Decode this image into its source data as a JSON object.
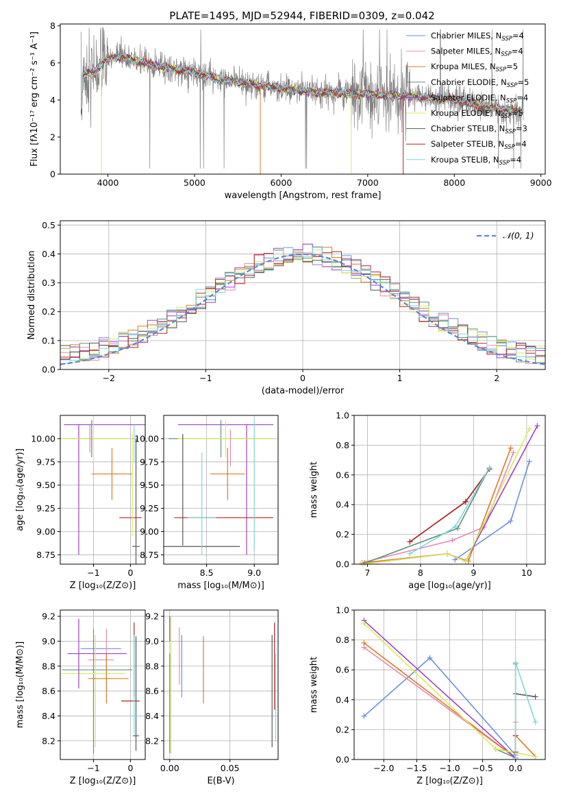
{
  "page": {
    "title": "PLATE=1495, MJD=52944, FIBERID=0309, z=0.042"
  },
  "colors": {
    "Chabrier MILES": "#6a8fdc",
    "Salpeter MILES": "#e58ab3",
    "Kroupa MILES": "#d97a26",
    "Chabrier ELODIE": "#5f8f78",
    "Salpeter ELODIE": "#a040c0",
    "Kroupa ELODIE": "#d9ea5a",
    "Chabrier STELIB": "#555555",
    "Salpeter STELIB": "#b22222",
    "Kroupa STELIB": "#7fd6dc",
    "data": "#808080",
    "normal": "#5b86d6"
  },
  "chart_data": [
    {
      "id": "spectrum",
      "type": "line",
      "title": "PLATE=1495, MJD=52944, FIBERID=0309, z=0.042",
      "xlabel": "wavelength [Angstrom, rest frame]",
      "ylabel": "Flux [fλ10⁻¹⁷ erg cm⁻² s⁻¹ A⁻¹]",
      "xlim": [
        3450,
        9050
      ],
      "ylim": [
        0,
        8.1
      ],
      "xticks": [
        "4000",
        "5000",
        "6000",
        "7000",
        "8000",
        "9000"
      ],
      "yticks": [
        "0",
        "2",
        "4",
        "6",
        "8"
      ],
      "legend": [
        {
          "name": "Chabrier MILES",
          "sub": "SSP",
          "n": "4"
        },
        {
          "name": "Salpeter MILES",
          "sub": "SSP",
          "n": "4"
        },
        {
          "name": "Kroupa MILES",
          "sub": "SSP",
          "n": "5"
        },
        {
          "name": "Chabrier ELODIE",
          "sub": "SSP",
          "n": "5"
        },
        {
          "name": "Salpeter ELODIE",
          "sub": "SSP",
          "n": "4"
        },
        {
          "name": "Kroupa ELODIE",
          "sub": "SSP",
          "n": "5"
        },
        {
          "name": "Chabrier STELIB",
          "sub": "SSP",
          "n": "3"
        },
        {
          "name": "Salpeter STELIB",
          "sub": "SSP",
          "n": "4"
        },
        {
          "name": "Kroupa STELIB",
          "sub": "SSP",
          "n": "4"
        }
      ],
      "legend_position": "top-right",
      "model_trend": [
        [
          3700,
          5.3
        ],
        [
          3850,
          5.5
        ],
        [
          3950,
          6.1
        ],
        [
          4050,
          6.3
        ],
        [
          4200,
          6.3
        ],
        [
          4400,
          6.0
        ],
        [
          4600,
          5.8
        ],
        [
          5000,
          5.5
        ],
        [
          5300,
          5.1
        ],
        [
          5600,
          4.9
        ],
        [
          6000,
          4.6
        ],
        [
          6500,
          4.4
        ],
        [
          7000,
          4.3
        ],
        [
          7500,
          4.2
        ],
        [
          8000,
          4.0
        ],
        [
          8500,
          3.5
        ],
        [
          8800,
          3.4
        ]
      ],
      "grid": false
    },
    {
      "id": "residuals",
      "type": "histogram",
      "xlabel": "(data-model)/error",
      "ylabel": "Normed distribution",
      "xlim": [
        -2.5,
        2.5
      ],
      "ylim": [
        0,
        0.515
      ],
      "xticks": [
        "−2",
        "−1",
        "0",
        "1",
        "2"
      ],
      "yticks": [
        "0.0",
        "0.1",
        "0.2",
        "0.3",
        "0.4",
        "0.5"
      ],
      "legend": "𝒩(0, 1)",
      "legend_position": "top-right",
      "grid": true
    },
    {
      "id": "age_vs_Z",
      "type": "errorbar",
      "xlabel": "Z [log₁₀(Z/Z⊙)]",
      "ylabel": "age  [log₁₀(age/yr)]",
      "xlim": [
        -1.9,
        0.4
      ],
      "ylim": [
        8.65,
        10.25
      ],
      "xticks": [
        "−1",
        "0"
      ],
      "yticks": [
        "8.75",
        "9.00",
        "9.25",
        "9.50",
        "9.75",
        "10.00"
      ],
      "grid": true,
      "series": [
        {
          "name": "Salpeter ELODIE",
          "x": -0.4,
          "xerr": 1.4,
          "y": 10.15,
          "yerr": 0.0
        },
        {
          "name": "Salpeter ELODIE",
          "x": -1.4,
          "xerr": 0.0,
          "y": 9.45,
          "yerr": 0.7
        },
        {
          "name": "Chabrier ELODIE",
          "x": -1.05,
          "xerr": 0.95,
          "y": 10.0,
          "yerr": 0.2
        },
        {
          "name": "Kroupa ELODIE",
          "x": -1.0,
          "xerr": 0.9,
          "y": 10.0,
          "yerr": 0.25
        },
        {
          "name": "Salpeter MILES",
          "x": -1.1,
          "xerr": 0.0,
          "y": 10.0,
          "yerr": 0.15
        },
        {
          "name": "Chabrier MILES",
          "x": -1.05,
          "xerr": 0.0,
          "y": 10.05,
          "yerr": 0.12
        },
        {
          "name": "Kroupa MILES",
          "x": -0.5,
          "xerr": 0.55,
          "y": 9.62,
          "yerr": 0.28
        },
        {
          "name": "Salpeter STELIB",
          "x": 0.0,
          "xerr": 0.3,
          "y": 9.15,
          "yerr": 0.0
        },
        {
          "name": "Chabrier STELIB",
          "x": 0.15,
          "xerr": 0.1,
          "y": 8.84,
          "yerr": 0.0
        },
        {
          "name": "Chabrier STELIB",
          "x": 0.15,
          "xerr": 0.0,
          "y": 9.3,
          "yerr": 0.7
        },
        {
          "name": "Kroupa STELIB",
          "x": 0.1,
          "xerr": 0.0,
          "y": 9.95,
          "yerr": 0.2
        },
        {
          "name": "Kroupa ELODIE",
          "x": 0.05,
          "xerr": 0.0,
          "y": 9.5,
          "yerr": 0.55
        }
      ]
    },
    {
      "id": "age_vs_mass",
      "type": "errorbar",
      "xlabel": "mass [log₁₀(M/M⊙)]",
      "ylabel": "",
      "xlim": [
        8.05,
        9.25
      ],
      "ylim": [
        8.65,
        10.25
      ],
      "xticks": [
        "8.5",
        "9.0"
      ],
      "yticks": [
        "8.75",
        "9.00",
        "9.25",
        "9.50",
        "9.75",
        "10.00"
      ],
      "grid": true,
      "series": [
        {
          "name": "Salpeter ELODIE",
          "x": 8.7,
          "xerr": 0.5,
          "y": 10.15,
          "yerr": 0.0
        },
        {
          "name": "Salpeter ELODIE",
          "x": 8.92,
          "xerr": 0.0,
          "y": 9.45,
          "yerr": 0.7
        },
        {
          "name": "Chabrier ELODIE",
          "x": 8.65,
          "xerr": 0.55,
          "y": 10.0,
          "yerr": 0.2
        },
        {
          "name": "Kroupa ELODIE",
          "x": 8.7,
          "xerr": 0.5,
          "y": 10.0,
          "yerr": 0.2
        },
        {
          "name": "Kroupa MILES",
          "x": 8.72,
          "xerr": 0.18,
          "y": 9.62,
          "yerr": 0.28
        },
        {
          "name": "Salpeter STELIB",
          "x": 8.68,
          "xerr": 0.52,
          "y": 9.15,
          "yerr": 0.0
        },
        {
          "name": "Chabrier STELIB",
          "x": 8.45,
          "xerr": 0.4,
          "y": 8.84,
          "yerr": 0.0
        },
        {
          "name": "Chabrier STELIB",
          "x": 8.25,
          "xerr": 0.0,
          "y": 9.45,
          "yerr": 0.6
        },
        {
          "name": "Kroupa STELIB",
          "x": 8.45,
          "xerr": 0.15,
          "y": 9.15,
          "yerr": 0.0
        },
        {
          "name": "Kroupa STELIB",
          "x": 8.45,
          "xerr": 0.0,
          "y": 9.3,
          "yerr": 0.55
        },
        {
          "name": "Salpeter MILES",
          "x": 8.75,
          "xerr": 0.0,
          "y": 9.9,
          "yerr": 0.2
        },
        {
          "name": "Kroupa STELIB",
          "x": 9.0,
          "xerr": 0.0,
          "y": 9.5,
          "yerr": 0.7
        }
      ]
    },
    {
      "id": "mass_weight_vs_age",
      "type": "line",
      "xlabel": "age  [log₁₀(age/yr)]",
      "ylabel": "mass weight",
      "xlim": [
        6.75,
        10.35
      ],
      "ylim": [
        0,
        1
      ],
      "xticks": [
        "7",
        "8",
        "9",
        "10"
      ],
      "yticks": [
        "0.0",
        "0.2",
        "0.4",
        "0.6",
        "0.8",
        "1.0"
      ],
      "grid": true,
      "series": [
        {
          "name": "Chabrier MILES",
          "x": [
            8.65,
            9.7,
            10.05
          ],
          "y": [
            0.03,
            0.29,
            0.69
          ]
        },
        {
          "name": "Salpeter MILES",
          "x": [
            6.9,
            8.6,
            9.2,
            9.75
          ],
          "y": [
            0.01,
            0.16,
            0.25,
            0.75
          ]
        },
        {
          "name": "Kroupa MILES",
          "x": [
            6.95,
            8.5,
            8.9,
            9.7
          ],
          "y": [
            0.01,
            0.07,
            0.02,
            0.78
          ]
        },
        {
          "name": "Chabrier ELODIE",
          "x": [
            6.9,
            8.7,
            9.3
          ],
          "y": [
            0.0,
            0.24,
            0.65
          ]
        },
        {
          "name": "Salpeter ELODIE",
          "x": [
            6.9,
            8.5,
            8.85,
            10.2
          ],
          "y": [
            0.0,
            0.07,
            0.02,
            0.93
          ]
        },
        {
          "name": "Kroupa ELODIE",
          "x": [
            6.9,
            8.5,
            8.85,
            10.05
          ],
          "y": [
            0.0,
            0.07,
            0.02,
            0.91
          ]
        },
        {
          "name": "Chabrier STELIB",
          "x": [
            7.8,
            8.85,
            9.3
          ],
          "y": [
            0.15,
            0.42,
            0.64
          ]
        },
        {
          "name": "Salpeter STELIB",
          "x": [
            7.8,
            8.85,
            9.3
          ],
          "y": [
            0.15,
            0.42,
            0.64
          ]
        },
        {
          "name": "Kroupa STELIB",
          "x": [
            7.8,
            8.65,
            9.3
          ],
          "y": [
            0.07,
            0.25,
            0.65
          ]
        }
      ]
    },
    {
      "id": "mass_vs_Z",
      "type": "errorbar",
      "xlabel": "Z [log₁₀(Z/Z⊙)]",
      "ylabel": "mass [log₁₀(M/M⊙)]",
      "xlim": [
        -1.9,
        0.4
      ],
      "ylim": [
        8.05,
        9.25
      ],
      "xticks": [
        "−1",
        "0"
      ],
      "yticks": [
        "8.2",
        "8.4",
        "8.6",
        "8.8",
        "9.0",
        "9.2"
      ],
      "grid": true,
      "series": [
        {
          "name": "Chabrier MILES",
          "x": -0.8,
          "xerr": 0.55,
          "y": 8.94,
          "yerr": 0.0
        },
        {
          "name": "Salpeter MILES",
          "x": -0.8,
          "xerr": 0.35,
          "y": 8.85,
          "yerr": 0.0
        },
        {
          "name": "Salpeter MILES",
          "x": -0.65,
          "xerr": 0.0,
          "y": 8.85,
          "yerr": 0.25
        },
        {
          "name": "Salpeter ELODIE",
          "x": -0.9,
          "xerr": 0.8,
          "y": 8.9,
          "yerr": 0.0
        },
        {
          "name": "Chabrier ELODIE",
          "x": -0.9,
          "xerr": 0.95,
          "y": 8.77,
          "yerr": 0.0
        },
        {
          "name": "Chabrier ELODIE",
          "x": -1.0,
          "xerr": 0.0,
          "y": 8.6,
          "yerr": 0.5
        },
        {
          "name": "Kroupa ELODIE",
          "x": -1.0,
          "xerr": 0.85,
          "y": 8.74,
          "yerr": 0.0
        },
        {
          "name": "Kroupa ELODIE",
          "x": -0.95,
          "xerr": 0.0,
          "y": 8.6,
          "yerr": 0.45
        },
        {
          "name": "Kroupa MILES",
          "x": -0.6,
          "xerr": 0.55,
          "y": 8.7,
          "yerr": 0.0
        },
        {
          "name": "Kroupa MILES",
          "x": -0.65,
          "xerr": 0.0,
          "y": 8.7,
          "yerr": 0.2
        },
        {
          "name": "Salpeter ELODIE",
          "x": -1.4,
          "xerr": 0.0,
          "y": 8.9,
          "yerr": 0.28
        },
        {
          "name": "Salpeter STELIB",
          "x": 0.0,
          "xerr": 0.25,
          "y": 8.52,
          "yerr": 0.0
        },
        {
          "name": "Salpeter STELIB",
          "x": 0.1,
          "xerr": 0.0,
          "y": 8.85,
          "yerr": 0.3
        },
        {
          "name": "Chabrier STELIB",
          "x": 0.15,
          "xerr": 0.08,
          "y": 8.24,
          "yerr": 0.0
        },
        {
          "name": "Chabrier STELIB",
          "x": 0.15,
          "xerr": 0.0,
          "y": 8.58,
          "yerr": 0.46
        },
        {
          "name": "Kroupa STELIB",
          "x": 0.1,
          "xerr": 0.15,
          "y": 8.4,
          "yerr": 0.0
        },
        {
          "name": "Kroupa STELIB",
          "x": 0.1,
          "xerr": 0.0,
          "y": 8.65,
          "yerr": 0.4
        }
      ]
    },
    {
      "id": "mass_vs_ebv",
      "type": "errorbar",
      "xlabel": "E(B-V)",
      "ylabel": "",
      "xlim": [
        -0.005,
        0.09
      ],
      "ylim": [
        8.05,
        9.25
      ],
      "xticks": [
        "0.00",
        "0.05"
      ],
      "yticks": [
        "8.2",
        "8.4",
        "8.6",
        "8.8",
        "9.0",
        "9.2"
      ],
      "grid": true,
      "series": [
        {
          "name": "Salpeter ELODIE",
          "x": 0.0,
          "xerr": 0.0,
          "y": 9.1,
          "yerr": 0.1
        },
        {
          "name": "Kroupa ELODIE",
          "x": 0.001,
          "xerr": 0.0,
          "y": 8.65,
          "yerr": 0.55
        },
        {
          "name": "Chabrier ELODIE",
          "x": 0.0,
          "xerr": 0.0,
          "y": 8.5,
          "yerr": 0.4
        },
        {
          "name": "Salpeter MILES",
          "x": 0.008,
          "xerr": 0.0,
          "y": 8.88,
          "yerr": 0.23
        },
        {
          "name": "Chabrier MILES",
          "x": 0.01,
          "xerr": 0.0,
          "y": 8.8,
          "yerr": 0.25
        },
        {
          "name": "Kroupa MILES",
          "x": 0.028,
          "xerr": 0.0,
          "y": 8.77,
          "yerr": 0.27
        },
        {
          "name": "Chabrier STELIB",
          "x": 0.085,
          "xerr": 0.0,
          "y": 8.6,
          "yerr": 0.45
        },
        {
          "name": "Salpeter STELIB",
          "x": 0.087,
          "xerr": 0.0,
          "y": 8.8,
          "yerr": 0.35
        },
        {
          "name": "Kroupa STELIB",
          "x": 0.088,
          "xerr": 0.0,
          "y": 8.55,
          "yerr": 0.35
        }
      ]
    },
    {
      "id": "mass_weight_vs_Z",
      "type": "line",
      "xlabel": "Z [log₁₀(Z/Z⊙)]",
      "ylabel": "mass weight",
      "xlim": [
        -2.45,
        0.45
      ],
      "ylim": [
        0,
        1
      ],
      "xticks": [
        "−2.0",
        "−1.5",
        "−1.0",
        "−0.5",
        "0.0"
      ],
      "yticks": [
        "0.0",
        "0.2",
        "0.4",
        "0.6",
        "0.8",
        "1.0"
      ],
      "grid": true,
      "series": [
        {
          "name": "Chabrier MILES",
          "x": [
            -2.3,
            -1.3,
            0.0
          ],
          "y": [
            0.29,
            0.68,
            0.03
          ]
        },
        {
          "name": "Salpeter MILES",
          "x": [
            -2.3,
            0.0,
            0.0
          ],
          "y": [
            0.75,
            0.01,
            0.25
          ]
        },
        {
          "name": "Kroupa MILES",
          "x": [
            -2.3,
            0.0,
            0.0,
            0.3
          ],
          "y": [
            0.78,
            0.01,
            0.16,
            0.02
          ]
        },
        {
          "name": "Chabrier ELODIE",
          "x": [
            -0.3,
            0.0,
            0.0
          ],
          "y": [
            0.07,
            0.01,
            0.64
          ]
        },
        {
          "name": "Salpeter ELODIE",
          "x": [
            -2.3,
            0.0
          ],
          "y": [
            0.93,
            0.01
          ]
        },
        {
          "name": "Kroupa ELODIE",
          "x": [
            -2.3,
            -0.3,
            0.3
          ],
          "y": [
            0.91,
            0.07,
            0.02
          ]
        },
        {
          "name": "Chabrier STELIB",
          "x": [
            0.0,
            0.3
          ],
          "y": [
            0.44,
            0.42
          ]
        },
        {
          "name": "Salpeter STELIB",
          "x": [
            0.0,
            0.0
          ],
          "y": [
            0.16,
            0.05
          ]
        },
        {
          "name": "Kroupa STELIB",
          "x": [
            0.0,
            0.0,
            0.3
          ],
          "y": [
            0.01,
            0.65,
            0.25
          ]
        }
      ]
    }
  ]
}
